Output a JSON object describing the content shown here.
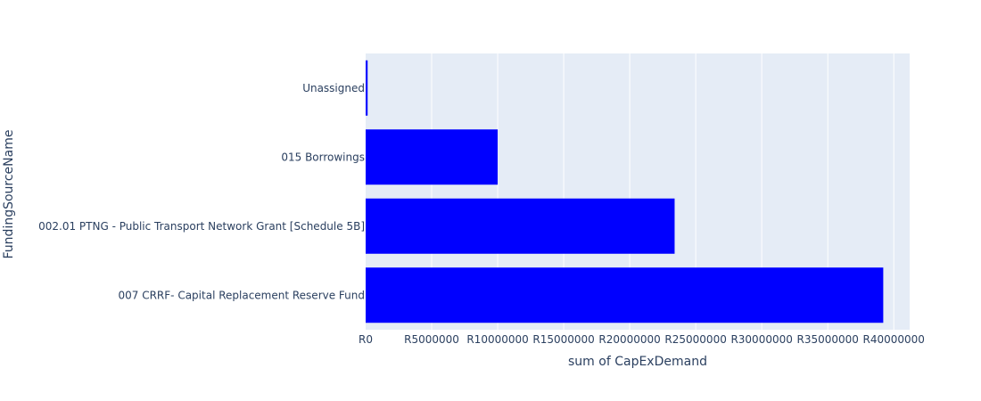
{
  "chart_data": {
    "type": "bar",
    "orientation": "horizontal",
    "xlabel": "sum of CapExDemand",
    "ylabel": "FundingSourceName",
    "categories": [
      "Unassigned",
      "015 Borrowings",
      "002.01 PTNG - Public Transport Network Grant [Schedule 5B]",
      "007 CRRF- Capital Replacement Reserve Fund"
    ],
    "values": [
      150000,
      10000000,
      23400000,
      39200000
    ],
    "xlim": [
      0,
      41200000
    ],
    "xticks": [
      0,
      5000000,
      10000000,
      15000000,
      20000000,
      25000000,
      30000000,
      35000000,
      40000000
    ],
    "xtick_labels": [
      "R0",
      "R5000000",
      "R10000000",
      "R15000000",
      "R20000000",
      "R25000000",
      "R30000000",
      "R35000000",
      "R40000000"
    ],
    "grid": true,
    "colors": {
      "bar": "#0000ff",
      "plot_bg": "#e5ecf6",
      "grid": "#ffffff",
      "text": "#2a3f5f"
    }
  }
}
